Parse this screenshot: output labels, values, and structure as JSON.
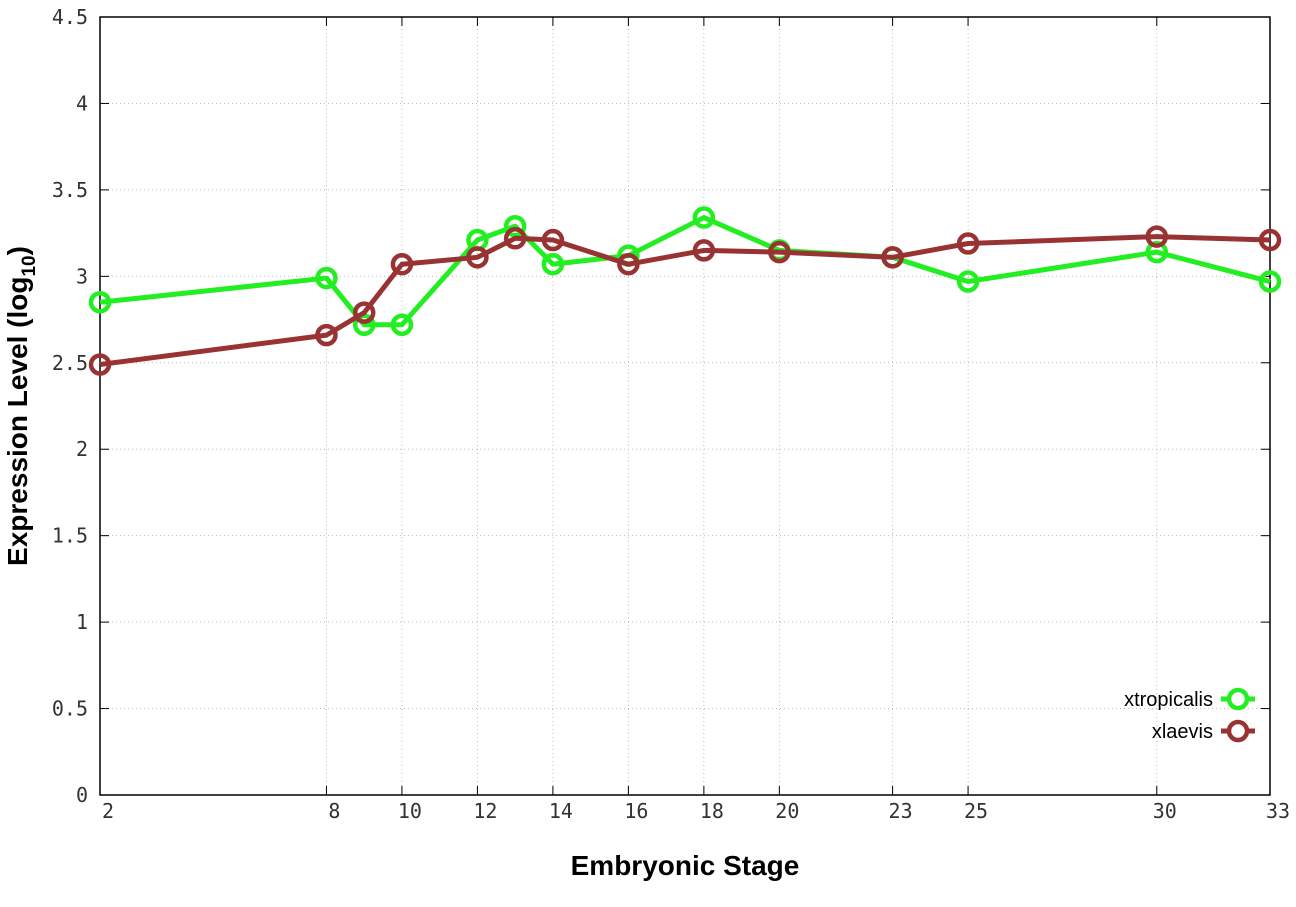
{
  "chart_data": {
    "type": "line",
    "xlabel": "Embryonic Stage",
    "ylabel_main": "Expression Level (log",
    "ylabel_sub": "10",
    "ylabel_close": ")",
    "x": [
      2,
      8,
      9,
      10,
      12,
      13,
      14,
      16,
      18,
      20,
      23,
      25,
      30,
      33
    ],
    "x_ticks": [
      2,
      8,
      10,
      12,
      14,
      16,
      18,
      20,
      23,
      25,
      30,
      33
    ],
    "y_ticks": [
      "0",
      "0.5",
      "1",
      "1.5",
      "2",
      "2.5",
      "3",
      "3.5",
      "4",
      "4.5"
    ],
    "xlim": [
      2,
      33
    ],
    "ylim": [
      0,
      4.5
    ],
    "grid": true,
    "legend_position": "bottom-right",
    "series": [
      {
        "name": "xtropicalis",
        "color": "#22ee22",
        "values": [
          2.85,
          2.99,
          2.72,
          2.72,
          3.21,
          3.29,
          3.07,
          3.12,
          3.34,
          3.15,
          3.11,
          2.97,
          3.14,
          2.97
        ]
      },
      {
        "name": "xlaevis",
        "color": "#993333",
        "values": [
          2.49,
          2.66,
          2.79,
          3.07,
          3.11,
          3.22,
          3.21,
          3.07,
          3.15,
          3.14,
          3.11,
          3.19,
          3.23,
          3.21
        ]
      }
    ]
  }
}
